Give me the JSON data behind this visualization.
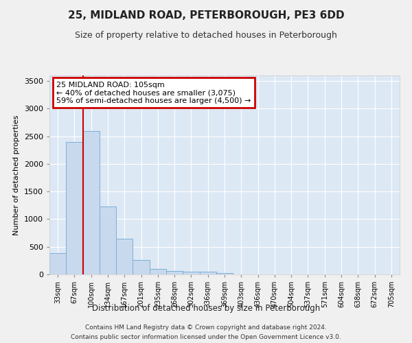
{
  "title": "25, MIDLAND ROAD, PETERBOROUGH, PE3 6DD",
  "subtitle": "Size of property relative to detached houses in Peterborough",
  "xlabel": "Distribution of detached houses by size in Peterborough",
  "ylabel": "Number of detached properties",
  "categories": [
    "33sqm",
    "67sqm",
    "100sqm",
    "134sqm",
    "167sqm",
    "201sqm",
    "235sqm",
    "268sqm",
    "302sqm",
    "336sqm",
    "369sqm",
    "403sqm",
    "436sqm",
    "470sqm",
    "504sqm",
    "537sqm",
    "571sqm",
    "604sqm",
    "638sqm",
    "672sqm",
    "705sqm"
  ],
  "values": [
    390,
    2400,
    2600,
    1230,
    640,
    255,
    95,
    60,
    55,
    45,
    30,
    0,
    0,
    0,
    0,
    0,
    0,
    0,
    0,
    0,
    0
  ],
  "bar_color": "#c8d9ee",
  "bar_edge_color": "#7bafd4",
  "annotation_title": "25 MIDLAND ROAD: 105sqm",
  "annotation_line1": "← 40% of detached houses are smaller (3,075)",
  "annotation_line2": "59% of semi-detached houses are larger (4,500) →",
  "annotation_box_color": "#cc0000",
  "vline_color": "#cc0000",
  "vline_x": 1.5,
  "ylim": [
    0,
    3600
  ],
  "yticks": [
    0,
    500,
    1000,
    1500,
    2000,
    2500,
    3000,
    3500
  ],
  "background_color": "#dde8f5",
  "grid_color": "#ffffff",
  "footer_line1": "Contains HM Land Registry data © Crown copyright and database right 2024.",
  "footer_line2": "Contains public sector information licensed under the Open Government Licence v3.0."
}
